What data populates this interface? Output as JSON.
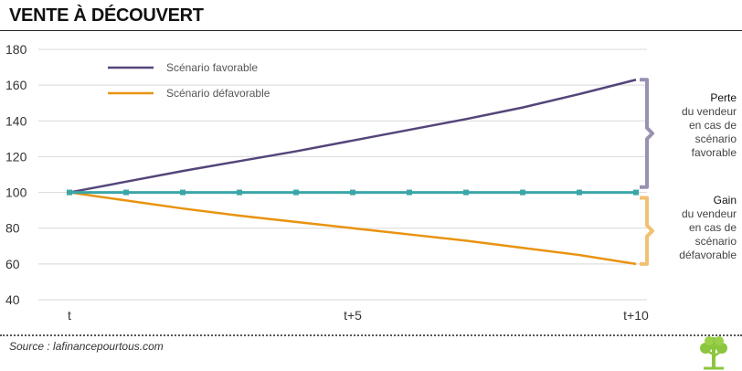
{
  "title": "VENTE À DÉCOUVERT",
  "chart_data": {
    "type": "line",
    "x": [
      "t",
      "",
      "",
      "",
      "",
      "t+5",
      "",
      "",
      "",
      "",
      "t+10"
    ],
    "x_tick_labels": [
      "t",
      "t+5",
      "t+10"
    ],
    "ylim": [
      40,
      180
    ],
    "yticks": [
      40,
      60,
      80,
      100,
      120,
      140,
      160,
      180
    ],
    "grid": "horizontal",
    "series": [
      {
        "name": "Scénario favorable",
        "color": "#54457a",
        "values": [
          100,
          106,
          112,
          117.5,
          123,
          129,
          135,
          141,
          147.5,
          155,
          163
        ]
      },
      {
        "name": "Scénario défavorable",
        "color": "#e8930f",
        "values": [
          100,
          95.5,
          91,
          87,
          83.5,
          80,
          76.5,
          73,
          69,
          65,
          60
        ]
      },
      {
        "name": "",
        "color": "#3aa6a8",
        "values": [
          100,
          100,
          100,
          100,
          100,
          100,
          100,
          100,
          100,
          100,
          100
        ]
      }
    ],
    "legend_position": "top-left",
    "annotations": [
      {
        "head": "Perte",
        "lines": [
          "du vendeur",
          "en cas de",
          "scénario",
          "favorable"
        ],
        "color": "#9a90b0",
        "range": [
          100,
          163
        ]
      },
      {
        "head": "Gain",
        "lines": [
          "du vendeur",
          "en cas de",
          "scénario",
          "défavorable"
        ],
        "color": "#f2c073",
        "range": [
          60,
          100
        ]
      }
    ]
  },
  "source": "Source : lafinancepourtous.com"
}
